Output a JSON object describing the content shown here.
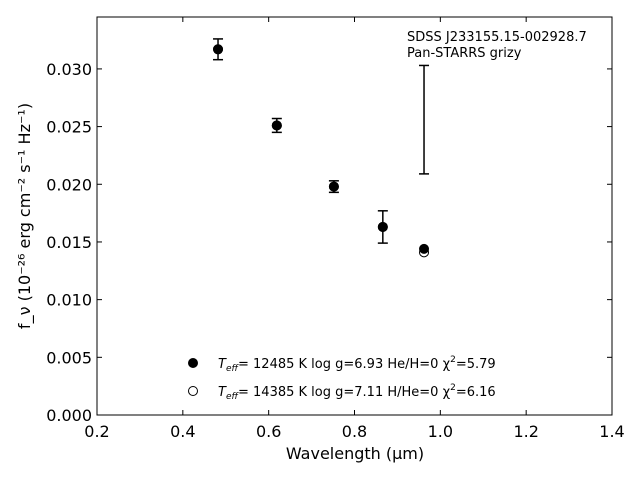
{
  "chart_data": {
    "type": "scatter",
    "xlabel": "Wavelength (μm)",
    "ylabel": "f_ν (10⁻²⁶ erg cm⁻² s⁻¹ Hz⁻¹)",
    "xlim": [
      0.2,
      1.4
    ],
    "ylim": [
      0.0,
      0.0345
    ],
    "xticks": [
      "0.2",
      "0.4",
      "0.6",
      "0.8",
      "1.0",
      "1.2",
      "1.4"
    ],
    "yticks": [
      "0.000",
      "0.005",
      "0.010",
      "0.015",
      "0.020",
      "0.025",
      "0.030"
    ],
    "grid": false,
    "annotations": [
      "SDSS J233155.15-002928.7",
      "Pan-STARRS grizy"
    ],
    "observed": {
      "x": [
        0.482,
        0.619,
        0.752,
        0.866,
        0.962
      ],
      "y": [
        0.0317,
        0.0251,
        0.0198,
        0.0163,
        0.0256
      ],
      "yerr": [
        0.0009,
        0.0006,
        0.0005,
        0.0014,
        0.0047
      ]
    },
    "series": [
      {
        "name": "T_eff= 12485 K  log g=6.93  He/H=0  χ²=5.79",
        "marker": "filled-circle",
        "x": [
          0.482,
          0.619,
          0.752,
          0.866,
          0.962
        ],
        "y": [
          0.0317,
          0.0251,
          0.0198,
          0.0163,
          0.0144
        ]
      },
      {
        "name": "T_eff= 14385 K  log g=7.11  H/He=0  χ²=6.16",
        "marker": "open-circle",
        "x": [
          0.482,
          0.619,
          0.752,
          0.866,
          0.962
        ],
        "y": [
          0.0317,
          0.0251,
          0.0198,
          0.0163,
          0.0141
        ]
      }
    ],
    "legend_entries": [
      {
        "teff": "T",
        "teff_sub": "eff",
        "text": "= 12485 K  log g=6.93  He/H=0  χ",
        "sup": "2",
        "tail": "=5.79"
      },
      {
        "teff": "T",
        "teff_sub": "eff",
        "text": "= 14385 K  log g=7.11  H/He=0  χ",
        "sup": "2",
        "tail": "=6.16"
      }
    ],
    "legend_placement": "lower-center"
  }
}
